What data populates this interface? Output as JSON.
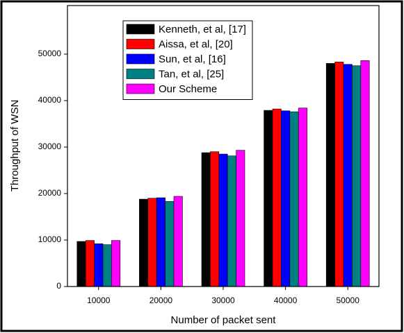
{
  "chart_data": {
    "type": "bar",
    "x_label": "Number of packet sent",
    "y_label": "Throughput of WSN",
    "categories": [
      10000,
      20000,
      30000,
      40000,
      50000
    ],
    "series": [
      {
        "name": "Kenneth, et al, [17]",
        "color": "#000000",
        "values": [
          9700,
          18800,
          28800,
          37900,
          48000
        ]
      },
      {
        "name": "Aissa, et al, [20]",
        "color": "#ff0000",
        "values": [
          9900,
          19000,
          29000,
          38200,
          48300
        ]
      },
      {
        "name": "Sun, et al, [16]",
        "color": "#0000ff",
        "values": [
          9200,
          19100,
          28500,
          37800,
          47800
        ]
      },
      {
        "name": "Tan, et al, [25]",
        "color": "#008080",
        "values": [
          9000,
          18300,
          28100,
          37600,
          47500
        ]
      },
      {
        "name": "Our Scheme",
        "color": "#ff00ff",
        "values": [
          9900,
          19400,
          29300,
          38400,
          48600
        ]
      }
    ],
    "ylim": [
      0,
      60000
    ],
    "yticks": [
      0,
      10000,
      20000,
      30000,
      40000,
      50000
    ],
    "legend": "upper-left"
  }
}
